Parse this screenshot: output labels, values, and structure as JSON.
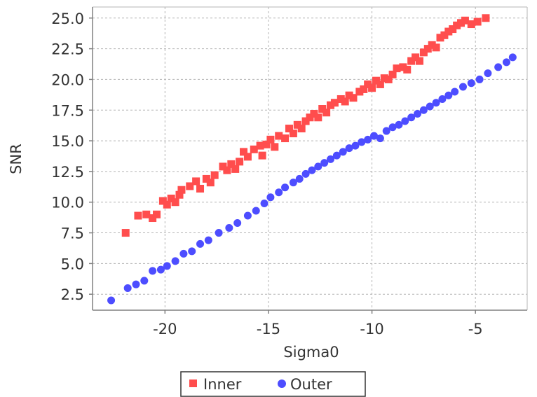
{
  "colors": {
    "inner": "#ff4d4d",
    "outer": "#4d4dff",
    "grid": "#b4b4b4",
    "axis": "#808080",
    "text": "#333333"
  },
  "chart_data": {
    "type": "scatter",
    "title": "",
    "xlabel": "Sigma0",
    "ylabel": "SNR",
    "xlim": [
      -23.5,
      -2.5
    ],
    "ylim": [
      1.2,
      25.9
    ],
    "x_ticks": [
      -20,
      -15,
      -10,
      -5
    ],
    "x_tick_labels": [
      "-20",
      "-15",
      "-10",
      "-5"
    ],
    "y_ticks": [
      2.5,
      5.0,
      7.5,
      10.0,
      12.5,
      15.0,
      17.5,
      20.0,
      22.5,
      25.0
    ],
    "y_tick_labels": [
      "2.5",
      "5.0",
      "7.5",
      "10.0",
      "12.5",
      "15.0",
      "17.5",
      "20.0",
      "22.5",
      "25.0"
    ],
    "grid": true,
    "legend_position": "bottom",
    "series": [
      {
        "name": "Inner",
        "marker": "square",
        "points": [
          [
            -21.9,
            7.5
          ],
          [
            -21.3,
            8.9
          ],
          [
            -20.9,
            9.0
          ],
          [
            -20.6,
            8.7
          ],
          [
            -20.4,
            9.0
          ],
          [
            -20.1,
            10.1
          ],
          [
            -19.9,
            9.8
          ],
          [
            -19.7,
            10.3
          ],
          [
            -19.5,
            10.0
          ],
          [
            -19.3,
            10.6
          ],
          [
            -19.2,
            11.0
          ],
          [
            -18.8,
            11.3
          ],
          [
            -18.5,
            11.7
          ],
          [
            -18.3,
            11.1
          ],
          [
            -18.0,
            11.9
          ],
          [
            -17.8,
            11.6
          ],
          [
            -17.6,
            12.2
          ],
          [
            -17.2,
            12.9
          ],
          [
            -17.0,
            12.6
          ],
          [
            -16.8,
            13.1
          ],
          [
            -16.6,
            12.7
          ],
          [
            -16.4,
            13.3
          ],
          [
            -16.2,
            14.1
          ],
          [
            -16.0,
            13.7
          ],
          [
            -15.7,
            14.3
          ],
          [
            -15.4,
            14.6
          ],
          [
            -15.3,
            13.8
          ],
          [
            -15.1,
            14.7
          ],
          [
            -14.9,
            15.1
          ],
          [
            -14.7,
            14.5
          ],
          [
            -14.5,
            15.4
          ],
          [
            -14.2,
            15.2
          ],
          [
            -14.0,
            16.0
          ],
          [
            -13.8,
            15.6
          ],
          [
            -13.6,
            16.3
          ],
          [
            -13.4,
            16.0
          ],
          [
            -13.2,
            16.6
          ],
          [
            -13.0,
            16.9
          ],
          [
            -12.8,
            17.2
          ],
          [
            -12.6,
            16.9
          ],
          [
            -12.4,
            17.6
          ],
          [
            -12.2,
            17.3
          ],
          [
            -12.0,
            17.9
          ],
          [
            -11.8,
            18.1
          ],
          [
            -11.5,
            18.4
          ],
          [
            -11.3,
            18.2
          ],
          [
            -11.1,
            18.7
          ],
          [
            -10.9,
            18.5
          ],
          [
            -10.6,
            19.0
          ],
          [
            -10.4,
            19.2
          ],
          [
            -10.2,
            19.6
          ],
          [
            -10.0,
            19.3
          ],
          [
            -9.8,
            19.9
          ],
          [
            -9.6,
            19.6
          ],
          [
            -9.4,
            20.1
          ],
          [
            -9.2,
            20.0
          ],
          [
            -9.0,
            20.4
          ],
          [
            -8.8,
            20.9
          ],
          [
            -8.5,
            21.0
          ],
          [
            -8.3,
            20.8
          ],
          [
            -8.1,
            21.5
          ],
          [
            -7.9,
            21.8
          ],
          [
            -7.7,
            21.5
          ],
          [
            -7.5,
            22.2
          ],
          [
            -7.3,
            22.5
          ],
          [
            -7.1,
            22.8
          ],
          [
            -6.9,
            22.6
          ],
          [
            -6.7,
            23.4
          ],
          [
            -6.5,
            23.6
          ],
          [
            -6.3,
            23.9
          ],
          [
            -6.1,
            24.1
          ],
          [
            -5.9,
            24.4
          ],
          [
            -5.7,
            24.6
          ],
          [
            -5.5,
            24.8
          ],
          [
            -5.2,
            24.5
          ],
          [
            -4.9,
            24.7
          ],
          [
            -4.5,
            25.0
          ]
        ]
      },
      {
        "name": "Outer",
        "marker": "circle",
        "points": [
          [
            -22.6,
            2.0
          ],
          [
            -21.8,
            3.0
          ],
          [
            -21.4,
            3.3
          ],
          [
            -21.0,
            3.6
          ],
          [
            -20.6,
            4.4
          ],
          [
            -20.2,
            4.5
          ],
          [
            -19.9,
            4.8
          ],
          [
            -19.5,
            5.2
          ],
          [
            -19.1,
            5.8
          ],
          [
            -18.7,
            6.0
          ],
          [
            -18.3,
            6.6
          ],
          [
            -17.9,
            6.9
          ],
          [
            -17.4,
            7.5
          ],
          [
            -16.9,
            7.9
          ],
          [
            -16.5,
            8.3
          ],
          [
            -16.0,
            8.9
          ],
          [
            -15.6,
            9.3
          ],
          [
            -15.2,
            9.9
          ],
          [
            -14.9,
            10.4
          ],
          [
            -14.5,
            10.8
          ],
          [
            -14.2,
            11.2
          ],
          [
            -13.8,
            11.6
          ],
          [
            -13.5,
            11.9
          ],
          [
            -13.2,
            12.3
          ],
          [
            -12.9,
            12.6
          ],
          [
            -12.6,
            12.9
          ],
          [
            -12.3,
            13.2
          ],
          [
            -12.0,
            13.5
          ],
          [
            -11.7,
            13.8
          ],
          [
            -11.4,
            14.1
          ],
          [
            -11.1,
            14.4
          ],
          [
            -10.8,
            14.6
          ],
          [
            -10.5,
            14.9
          ],
          [
            -10.2,
            15.1
          ],
          [
            -9.9,
            15.4
          ],
          [
            -9.6,
            15.2
          ],
          [
            -9.3,
            15.8
          ],
          [
            -9.0,
            16.1
          ],
          [
            -8.7,
            16.3
          ],
          [
            -8.4,
            16.6
          ],
          [
            -8.1,
            16.9
          ],
          [
            -7.8,
            17.2
          ],
          [
            -7.5,
            17.5
          ],
          [
            -7.2,
            17.8
          ],
          [
            -6.9,
            18.1
          ],
          [
            -6.6,
            18.4
          ],
          [
            -6.3,
            18.7
          ],
          [
            -6.0,
            19.0
          ],
          [
            -5.6,
            19.4
          ],
          [
            -5.2,
            19.7
          ],
          [
            -4.8,
            20.0
          ],
          [
            -4.4,
            20.5
          ],
          [
            -3.9,
            21.0
          ],
          [
            -3.5,
            21.4
          ],
          [
            -3.2,
            21.8
          ]
        ]
      }
    ]
  }
}
